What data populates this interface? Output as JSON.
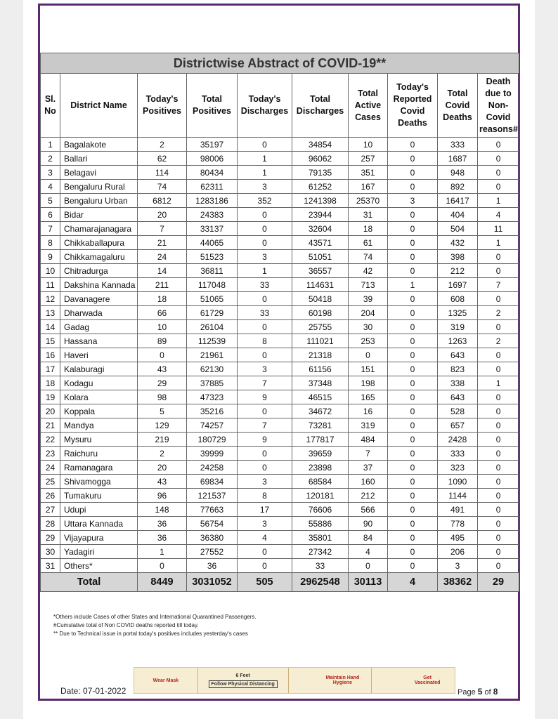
{
  "table": {
    "title": "Districtwise Abstract of COVID-19**",
    "headers": [
      "Sl. No",
      "District Name",
      "Today's Positives",
      "Total Positives",
      "Today's Discharges",
      "Total Discharges",
      "Total Active Cases",
      "Today's Reported Covid Deaths",
      "Total Covid Deaths",
      "Death due to Non-Covid reasons#"
    ],
    "rows": [
      [
        1,
        "Bagalakote",
        2,
        35197,
        0,
        34854,
        10,
        0,
        333,
        0
      ],
      [
        2,
        "Ballari",
        62,
        98006,
        1,
        96062,
        257,
        0,
        1687,
        0
      ],
      [
        3,
        "Belagavi",
        114,
        80434,
        1,
        79135,
        351,
        0,
        948,
        0
      ],
      [
        4,
        "Bengaluru Rural",
        74,
        62311,
        3,
        61252,
        167,
        0,
        892,
        0
      ],
      [
        5,
        "Bengaluru Urban",
        6812,
        1283186,
        352,
        1241398,
        25370,
        3,
        16417,
        1
      ],
      [
        6,
        "Bidar",
        20,
        24383,
        0,
        23944,
        31,
        0,
        404,
        4
      ],
      [
        7,
        "Chamarajanagara",
        7,
        33137,
        0,
        32604,
        18,
        0,
        504,
        11
      ],
      [
        8,
        "Chikkaballapura",
        21,
        44065,
        0,
        43571,
        61,
        0,
        432,
        1
      ],
      [
        9,
        "Chikkamagaluru",
        24,
        51523,
        3,
        51051,
        74,
        0,
        398,
        0
      ],
      [
        10,
        "Chitradurga",
        14,
        36811,
        1,
        36557,
        42,
        0,
        212,
        0
      ],
      [
        11,
        "Dakshina Kannada",
        211,
        117048,
        33,
        114631,
        713,
        1,
        1697,
        7
      ],
      [
        12,
        "Davanagere",
        18,
        51065,
        0,
        50418,
        39,
        0,
        608,
        0
      ],
      [
        13,
        "Dharwada",
        66,
        61729,
        33,
        60198,
        204,
        0,
        1325,
        2
      ],
      [
        14,
        "Gadag",
        10,
        26104,
        0,
        25755,
        30,
        0,
        319,
        0
      ],
      [
        15,
        "Hassana",
        89,
        112539,
        8,
        111021,
        253,
        0,
        1263,
        2
      ],
      [
        16,
        "Haveri",
        0,
        21961,
        0,
        21318,
        0,
        0,
        643,
        0
      ],
      [
        17,
        "Kalaburagi",
        43,
        62130,
        3,
        61156,
        151,
        0,
        823,
        0
      ],
      [
        18,
        "Kodagu",
        29,
        37885,
        7,
        37348,
        198,
        0,
        338,
        1
      ],
      [
        19,
        "Kolara",
        98,
        47323,
        9,
        46515,
        165,
        0,
        643,
        0
      ],
      [
        20,
        "Koppala",
        5,
        35216,
        0,
        34672,
        16,
        0,
        528,
        0
      ],
      [
        21,
        "Mandya",
        129,
        74257,
        7,
        73281,
        319,
        0,
        657,
        0
      ],
      [
        22,
        "Mysuru",
        219,
        180729,
        9,
        177817,
        484,
        0,
        2428,
        0
      ],
      [
        23,
        "Raichuru",
        2,
        39999,
        0,
        39659,
        7,
        0,
        333,
        0
      ],
      [
        24,
        "Ramanagara",
        20,
        24258,
        0,
        23898,
        37,
        0,
        323,
        0
      ],
      [
        25,
        "Shivamogga",
        43,
        69834,
        3,
        68584,
        160,
        0,
        1090,
        0
      ],
      [
        26,
        "Tumakuru",
        96,
        121537,
        8,
        120181,
        212,
        0,
        1144,
        0
      ],
      [
        27,
        "Udupi",
        148,
        77663,
        17,
        76606,
        566,
        0,
        491,
        0
      ],
      [
        28,
        "Uttara Kannada",
        36,
        56754,
        3,
        55886,
        90,
        0,
        778,
        0
      ],
      [
        29,
        "Vijayapura",
        36,
        36380,
        4,
        35801,
        84,
        0,
        495,
        0
      ],
      [
        30,
        "Yadagiri",
        1,
        27552,
        0,
        27342,
        4,
        0,
        206,
        0
      ],
      [
        31,
        "Others*",
        0,
        36,
        0,
        33,
        0,
        0,
        3,
        0
      ]
    ],
    "total": [
      "Total",
      8449,
      3031052,
      505,
      2962548,
      30113,
      4,
      38362,
      29
    ]
  },
  "footnotes": [
    "*Others include Cases of other States and International Quarantined Passengers.",
    "#Cumulative total of Non COVID deaths reported till today.",
    "** Due to Technical issue in portal today's positives includes yesterday's cases"
  ],
  "banner": [
    "Wear Mask",
    "6 Feet",
    "Follow Physical Distancing",
    "Maintain Hand Hygiene",
    "Get Vaccinated"
  ],
  "footer": {
    "date": "Date: 07-01-2022",
    "page_word": "Page",
    "page_number": "5",
    "page_of": "of",
    "page_total": "8"
  }
}
